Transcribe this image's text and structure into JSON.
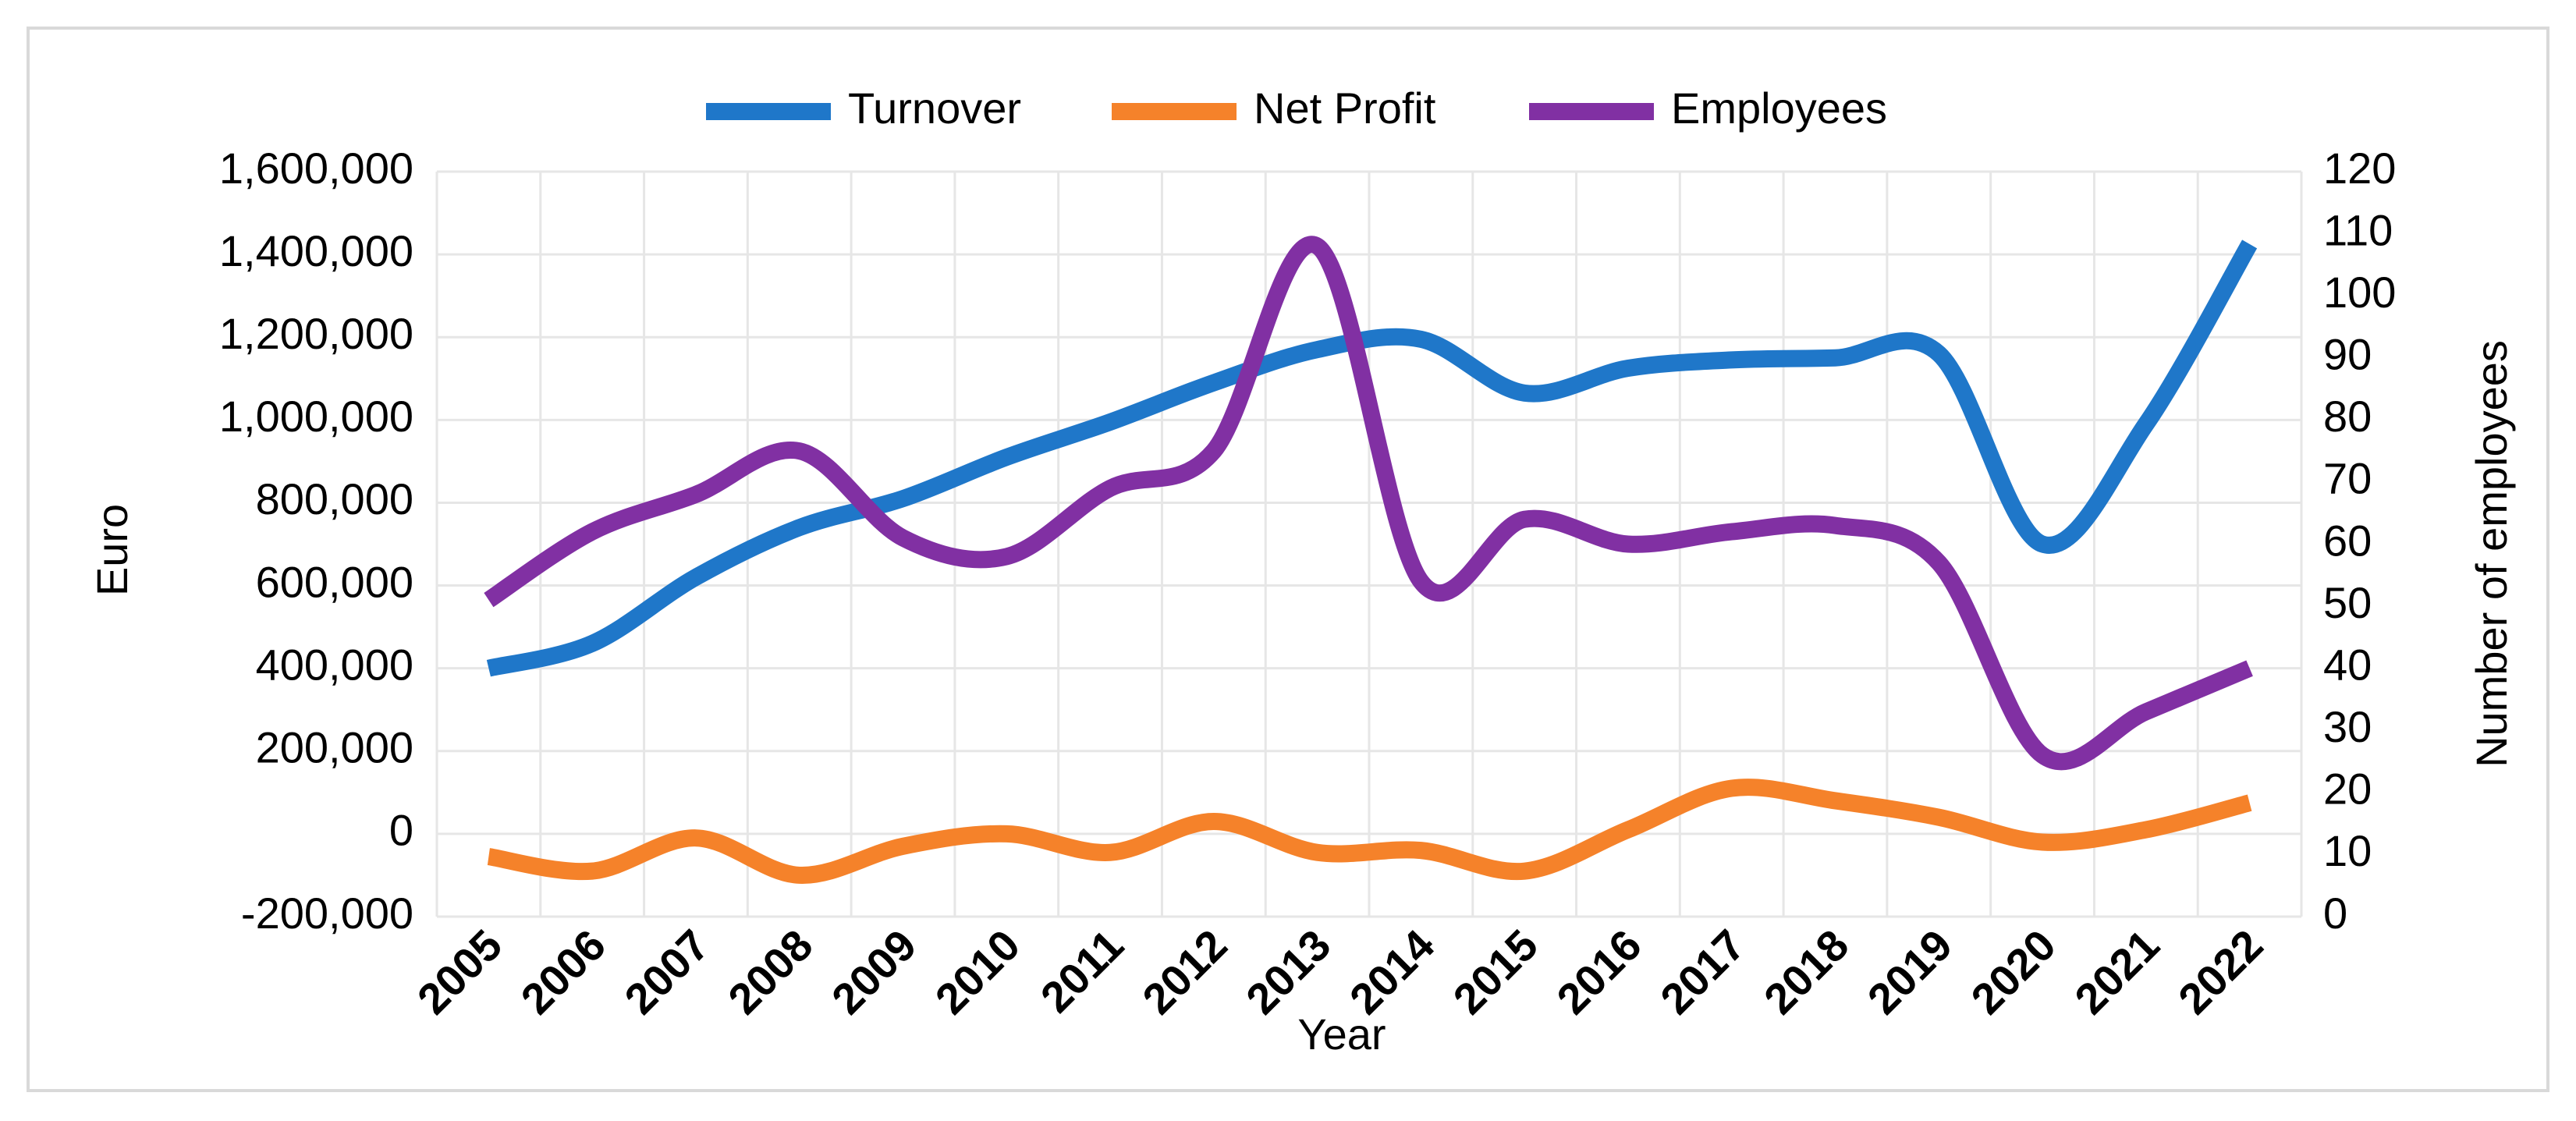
{
  "chart_data": {
    "type": "line",
    "title": "",
    "xlabel": "Year",
    "ylabel": "Euro",
    "y2label": "Number of employees",
    "x": [
      "2005",
      "2006",
      "2007",
      "2008",
      "2009",
      "2010",
      "2011",
      "2012",
      "2013",
      "2014",
      "2015",
      "2016",
      "2017",
      "2018",
      "2019",
      "2020",
      "2021",
      "2022"
    ],
    "ylim": [
      -200000,
      1600000
    ],
    "y_ticks": [
      -200000,
      0,
      200000,
      400000,
      600000,
      800000,
      1000000,
      1200000,
      1400000,
      1600000
    ],
    "y_tick_labels": [
      "-200,000",
      "0",
      "200,000",
      "400,000",
      "600,000",
      "800,000",
      "1,000,000",
      "1,200,000",
      "1,400,000",
      "1,600,000"
    ],
    "y2lim": [
      0,
      120
    ],
    "y2_ticks": [
      0,
      10,
      20,
      30,
      40,
      50,
      60,
      70,
      80,
      90,
      100,
      110,
      120
    ],
    "y2_tick_labels": [
      "0",
      "10",
      "20",
      "30",
      "40",
      "50",
      "60",
      "70",
      "80",
      "90",
      "100",
      "110",
      "120"
    ],
    "grid": true,
    "smooth": true,
    "legend_position": "top",
    "series": [
      {
        "name": "Turnover",
        "axis": "left",
        "color": "#1f77c9",
        "values": [
          400000,
          460000,
          620000,
          740000,
          810000,
          910000,
          995000,
          1090000,
          1170000,
          1195000,
          1065000,
          1125000,
          1145000,
          1150000,
          1160000,
          700000,
          990000,
          1425000
        ]
      },
      {
        "name": "Net Profit",
        "axis": "left",
        "color": "#f5822a",
        "values": [
          -55000,
          -90000,
          -10000,
          -100000,
          -30000,
          0,
          -45000,
          30000,
          -45000,
          -40000,
          -90000,
          10000,
          110000,
          80000,
          40000,
          -20000,
          10000,
          75000
        ]
      },
      {
        "name": "Employees",
        "axis": "right",
        "color": "#8130a3",
        "values": [
          51,
          62,
          68,
          75,
          61,
          58,
          69,
          75,
          108,
          54,
          64,
          60,
          62,
          63,
          57,
          26,
          33,
          40
        ]
      }
    ]
  }
}
